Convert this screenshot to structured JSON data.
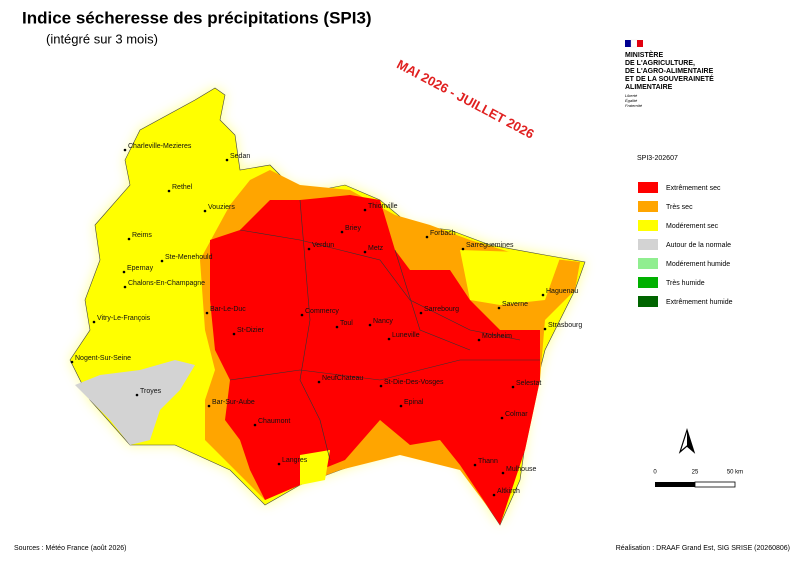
{
  "header": {
    "title": "Indice sécheresse des précipitations (SPI3)",
    "subtitle": "(intégré sur 3 mois)",
    "period": "MAI 2026 - JUILLET 2026"
  },
  "ministry": {
    "lines": [
      "MINISTÈRE",
      "DE L'AGRICULTURE,",
      "DE L'AGRO-ALIMENTAIRE",
      "ET DE LA SOUVERAINETÉ",
      "ALIMENTAIRE"
    ],
    "motto": [
      "Liberté",
      "Égalité",
      "Fraternité"
    ]
  },
  "legend": {
    "title": "SPI3-202607",
    "items": [
      {
        "label": "Extrêmement sec",
        "color": "#ff0000"
      },
      {
        "label": "Très sec",
        "color": "#ffa500"
      },
      {
        "label": "Modérement sec",
        "color": "#ffff00"
      },
      {
        "label": "Autour de la normale",
        "color": "#d3d3d3"
      },
      {
        "label": "Modérement humide",
        "color": "#90ee90"
      },
      {
        "label": "Très humide",
        "color": "#00b000"
      },
      {
        "label": "Extrêmement humide",
        "color": "#006400"
      }
    ]
  },
  "cities": [
    "Charleville-Mezieres",
    "Sedan",
    "Rethel",
    "Vouziers",
    "Thionville",
    "Forbach",
    "Briey",
    "Sarreguemines",
    "Reims",
    "Verdun",
    "Metz",
    "Ste-Menehould",
    "Epernay",
    "Haguenau",
    "Chalons-En-Champagne",
    "Saverne",
    "Sarrebourg",
    "Bar-Le-Duc",
    "Commercy",
    "Toul",
    "Nancy",
    "Strasbourg",
    "Vitry-Le-François",
    "St-Dizier",
    "Luneville",
    "Molsheim",
    "Nogent-Sur-Seine",
    "NeufChateau",
    "St-Die-Des-Vosges",
    "Selestat",
    "Troyes",
    "Bar-Sur-Aube",
    "Epinal",
    "Colmar",
    "Chaumont",
    "Thann",
    "Mulhouse",
    "Langres",
    "Altkirch"
  ],
  "scale": [
    "0",
    "25",
    "50 km"
  ],
  "footer": {
    "sources": "Sources : Météo France (août 2026)",
    "credits": "Réalisation : DRAAF Grand Est, SIG SRISE (20260806)"
  }
}
